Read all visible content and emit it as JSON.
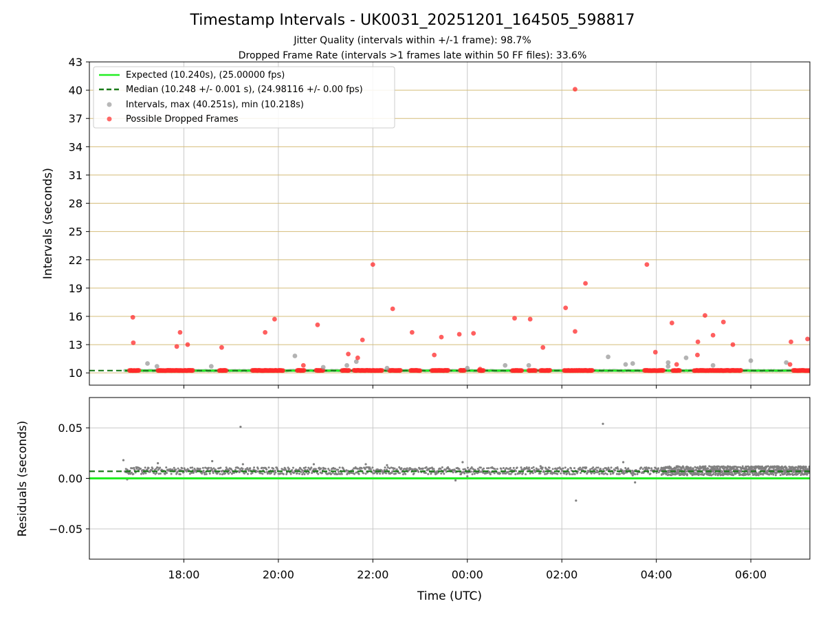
{
  "figure": {
    "title": "Timestamp Intervals - UK0031_20251201_164505_598817",
    "subtitle_jitter": "Jitter Quality (intervals within +/-1 frame): 98.7%",
    "subtitle_dropped": "Dropped Frame Rate (intervals >1 frames late within 50 FF files): 33.6%"
  },
  "colors": {
    "expected": "#22ee22",
    "median": "#1a7a1a",
    "interval": "#9a9a9a",
    "dropped": "#ff2a2a",
    "hgrid": "#d4bc78",
    "vgrid": "#c8c8c8",
    "residual": "#808080"
  },
  "chart_data": [
    {
      "type": "scatter",
      "name": "intervals",
      "ylabel": "Intervals (seconds)",
      "xlim": [
        16.0,
        31.25
      ],
      "ylim": [
        8.7,
        43
      ],
      "yticks": [
        10,
        13,
        16,
        19,
        22,
        25,
        28,
        31,
        34,
        37,
        40,
        43
      ],
      "ytick_labels": [
        "10",
        "13",
        "16",
        "19",
        "22",
        "25",
        "28",
        "31",
        "34",
        "37",
        "40",
        "43"
      ],
      "xticks": [
        18,
        20,
        22,
        24,
        26,
        28,
        30
      ],
      "grid": {
        "horizontal": true,
        "vertical": true
      },
      "legend": {
        "position": "top-left",
        "entries": [
          {
            "label": "Expected (10.240s), (25.00000 fps)",
            "style": "line"
          },
          {
            "label": "Median (10.248 +/- 0.001 s), (24.98116 +/- 0.00 fps)",
            "style": "dashed"
          },
          {
            "label": "Intervals, max (40.251s), min (10.218s)",
            "style": "grey-dot"
          },
          {
            "label": "Possible Dropped Frames",
            "style": "red-dot"
          }
        ]
      },
      "expected_value": 10.24,
      "median_value": 10.248,
      "data_start_time": 16.75,
      "dropped_clusters": [
        [
          16.85,
          17.05
        ],
        [
          17.45,
          18.2
        ],
        [
          18.75,
          18.9
        ],
        [
          19.45,
          20.1
        ],
        [
          20.4,
          20.55
        ],
        [
          20.8,
          20.95
        ],
        [
          21.35,
          21.5
        ],
        [
          21.6,
          22.2
        ],
        [
          22.35,
          22.6
        ],
        [
          22.8,
          23.0
        ],
        [
          23.25,
          23.6
        ],
        [
          23.85,
          23.95
        ],
        [
          24.25,
          24.35
        ],
        [
          24.95,
          25.15
        ],
        [
          25.3,
          25.45
        ],
        [
          25.55,
          25.75
        ],
        [
          26.05,
          26.65
        ],
        [
          27.75,
          28.15
        ],
        [
          28.35,
          28.5
        ],
        [
          28.8,
          29.8
        ],
        [
          30.9,
          31.25
        ]
      ],
      "dropped_points": [
        [
          16.92,
          15.9
        ],
        [
          16.93,
          13.2
        ],
        [
          17.85,
          12.8
        ],
        [
          17.92,
          14.3
        ],
        [
          18.08,
          13.0
        ],
        [
          18.8,
          12.7
        ],
        [
          19.72,
          14.3
        ],
        [
          19.92,
          15.7
        ],
        [
          20.53,
          10.8
        ],
        [
          20.83,
          15.1
        ],
        [
          21.48,
          12.0
        ],
        [
          21.68,
          11.6
        ],
        [
          21.78,
          13.5
        ],
        [
          22.0,
          21.5
        ],
        [
          22.42,
          16.8
        ],
        [
          22.83,
          14.3
        ],
        [
          23.3,
          11.9
        ],
        [
          23.45,
          13.8
        ],
        [
          23.83,
          14.1
        ],
        [
          24.13,
          14.2
        ],
        [
          24.27,
          10.4
        ],
        [
          25.0,
          15.8
        ],
        [
          25.33,
          15.7
        ],
        [
          25.6,
          12.7
        ],
        [
          26.08,
          16.9
        ],
        [
          26.28,
          40.1
        ],
        [
          26.28,
          14.4
        ],
        [
          26.5,
          19.5
        ],
        [
          27.8,
          21.5
        ],
        [
          27.98,
          12.2
        ],
        [
          28.33,
          15.3
        ],
        [
          28.43,
          10.9
        ],
        [
          28.87,
          11.9
        ],
        [
          28.88,
          13.3
        ],
        [
          29.03,
          16.1
        ],
        [
          29.2,
          14.0
        ],
        [
          29.42,
          15.4
        ],
        [
          29.62,
          13.0
        ],
        [
          30.85,
          13.3
        ],
        [
          30.83,
          10.9
        ],
        [
          31.2,
          13.6
        ]
      ],
      "interval_points": [
        [
          17.23,
          11.0
        ],
        [
          17.43,
          10.7
        ],
        [
          18.58,
          10.7
        ],
        [
          20.35,
          11.8
        ],
        [
          20.95,
          10.6
        ],
        [
          21.45,
          10.8
        ],
        [
          21.65,
          11.2
        ],
        [
          22.3,
          10.5
        ],
        [
          24.0,
          10.5
        ],
        [
          24.8,
          10.8
        ],
        [
          25.3,
          10.8
        ],
        [
          26.98,
          11.7
        ],
        [
          27.35,
          10.9
        ],
        [
          27.5,
          11.0
        ],
        [
          28.25,
          10.7
        ],
        [
          28.25,
          11.1
        ],
        [
          28.63,
          11.6
        ],
        [
          29.2,
          10.8
        ],
        [
          30.0,
          11.3
        ],
        [
          30.75,
          11.1
        ]
      ]
    },
    {
      "type": "scatter",
      "name": "residuals",
      "ylabel": "Residuals (seconds)",
      "xlabel": "Time (UTC)",
      "xlim": [
        16.0,
        31.25
      ],
      "ylim": [
        -0.08,
        0.08
      ],
      "yticks": [
        0.05,
        0.0,
        -0.05
      ],
      "ytick_labels": [
        "0.05",
        "0.00",
        "−0.05"
      ],
      "xticks": [
        18,
        20,
        22,
        24,
        26,
        28,
        30
      ],
      "xtick_labels": [
        "18:00",
        "20:00",
        "22:00",
        "00:00",
        "02:00",
        "04:00",
        "06:00"
      ],
      "grid": {
        "horizontal": true,
        "vertical": true
      },
      "expected_value": 0.0,
      "median_value": 0.007,
      "dense_band": [
        28.1,
        31.25
      ],
      "outliers": [
        [
          16.72,
          0.018
        ],
        [
          17.45,
          0.015
        ],
        [
          18.6,
          0.017
        ],
        [
          19.2,
          0.051
        ],
        [
          19.25,
          0.014
        ],
        [
          20.75,
          0.014
        ],
        [
          21.85,
          0.014
        ],
        [
          22.3,
          0.013
        ],
        [
          23.9,
          0.016
        ],
        [
          23.75,
          -0.002
        ],
        [
          25.55,
          0.012
        ],
        [
          26.3,
          -0.022
        ],
        [
          26.87,
          0.054
        ],
        [
          27.3,
          0.016
        ],
        [
          27.55,
          -0.004
        ],
        [
          27.5,
          0.003
        ],
        [
          24.0,
          0.002
        ],
        [
          16.8,
          -0.001
        ]
      ]
    }
  ]
}
